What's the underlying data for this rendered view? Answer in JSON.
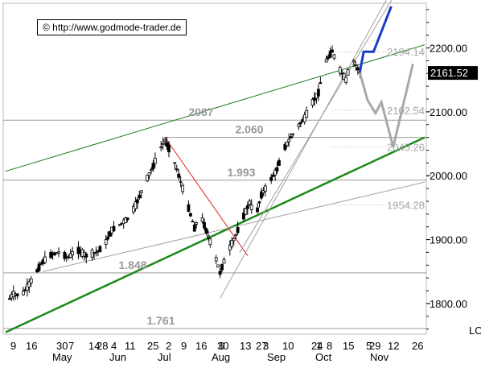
{
  "watermark": "© http://www.godmode-trader.de",
  "chart_data": {
    "type": "candlestick",
    "title": "",
    "xlabel": "",
    "ylabel": "",
    "ylim": [
      1752,
      2270
    ],
    "y_ticks": [
      "2200.00",
      "2100.00",
      "2000.00",
      "1900.00",
      "1800.00"
    ],
    "y_tick_values": [
      2200,
      2100,
      2000,
      1900,
      1800
    ],
    "last_price": "2161.52",
    "last_price_value": 2161.52,
    "corner_label": "LO",
    "x_day_labels": [
      "9",
      "16",
      "30",
      "7",
      "14",
      "28",
      "4",
      "11",
      "25",
      "2",
      "9",
      "16",
      "30",
      "6",
      "13",
      "27",
      "3",
      "10",
      "24",
      "1",
      "8",
      "15",
      "29",
      "5",
      "12",
      "26"
    ],
    "x_month_labels": [
      "May",
      "Jun",
      "Jul",
      "Aug",
      "Sep",
      "Oct",
      "Nov"
    ],
    "horizontal_levels": [
      {
        "label": "2087",
        "value": 2087
      },
      {
        "label": "2.060",
        "value": 2060
      },
      {
        "label": "1.993",
        "value": 1993
      },
      {
        "label": "1.848",
        "value": 1848
      },
      {
        "label": "1.761",
        "value": 1761
      }
    ],
    "target_levels": [
      {
        "label": "2194.14",
        "value": 2194.14
      },
      {
        "label": "2102.54",
        "value": 2102.54
      },
      {
        "label": "2045.26",
        "value": 2045.26
      },
      {
        "label": "1954.28",
        "value": 1954.28
      }
    ],
    "price_path": [
      [
        "05-01",
        1800
      ],
      [
        "05-05",
        1815
      ],
      [
        "05-09",
        1812
      ],
      [
        "05-13",
        1830
      ],
      [
        "05-19",
        1862
      ],
      [
        "05-23",
        1875
      ],
      [
        "05-28",
        1880
      ],
      [
        "06-02",
        1872
      ],
      [
        "06-06",
        1885
      ],
      [
        "06-11",
        1875
      ],
      [
        "06-16",
        1880
      ],
      [
        "06-20",
        1890
      ],
      [
        "06-24",
        1915
      ],
      [
        "06-30",
        1928
      ],
      [
        "07-03",
        1935
      ],
      [
        "07-07",
        1960
      ],
      [
        "07-11",
        1990
      ],
      [
        "07-15",
        2015
      ],
      [
        "07-18",
        2040
      ],
      [
        "07-21",
        2055
      ],
      [
        "07-25",
        2030
      ],
      [
        "07-28",
        2000
      ],
      [
        "08-01",
        1960
      ],
      [
        "08-05",
        1918
      ],
      [
        "08-08",
        1940
      ],
      [
        "08-12",
        1905
      ],
      [
        "08-15",
        1880
      ],
      [
        "08-18",
        1848
      ],
      [
        "08-21",
        1875
      ],
      [
        "08-25",
        1900
      ],
      [
        "08-29",
        1930
      ],
      [
        "09-02",
        1958
      ],
      [
        "09-05",
        1935
      ],
      [
        "09-08",
        1970
      ],
      [
        "09-12",
        1990
      ],
      [
        "09-16",
        2010
      ],
      [
        "09-19",
        2040
      ],
      [
        "09-23",
        2060
      ],
      [
        "09-26",
        2075
      ],
      [
        "09-30",
        2090
      ],
      [
        "10-03",
        2110
      ],
      [
        "10-07",
        2130
      ],
      [
        "10-10",
        2175
      ],
      [
        "10-14",
        2195
      ],
      [
        "10-17",
        2170
      ],
      [
        "10-21",
        2150
      ],
      [
        "10-24",
        2185
      ],
      [
        "10-28",
        2161.52
      ]
    ],
    "projection_blue": [
      [
        "10-28",
        2161.52
      ],
      [
        "10-30",
        2194
      ],
      [
        "11-04",
        2194
      ],
      [
        "11-13",
        2265
      ]
    ],
    "projection_gray": [
      [
        "10-28",
        2161.52
      ],
      [
        "11-01",
        2118
      ],
      [
        "11-05",
        2098
      ],
      [
        "11-08",
        2115
      ],
      [
        "11-14",
        2045
      ],
      [
        "11-19",
        2110
      ],
      [
        "11-24",
        2175
      ]
    ]
  }
}
